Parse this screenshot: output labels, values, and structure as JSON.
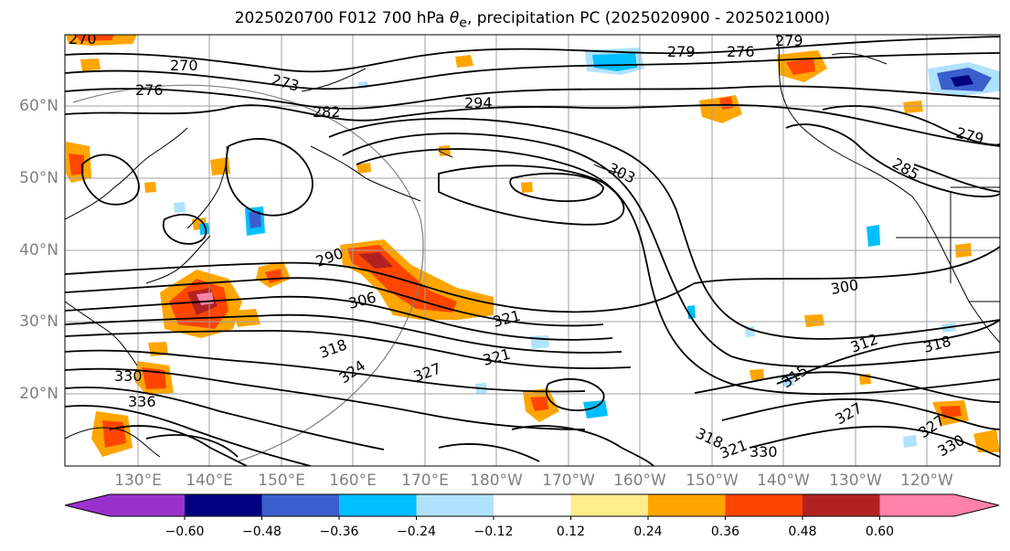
{
  "title_main": "2025020700 F012 700 hPa ",
  "title_symbol": "θ",
  "title_sub": "e",
  "title_rest": ", precipitation PC (2025020900 - 2025021000)",
  "latitude_labels": [
    "60°N",
    "50°N",
    "40°N",
    "30°N",
    "20°N"
  ],
  "longitude_labels": [
    "130°E",
    "140°E",
    "150°E",
    "160°E",
    "170°E",
    "180°W",
    "170°W",
    "160°W",
    "150°W",
    "140°W",
    "130°W",
    "120°W"
  ],
  "contour_labels": [
    "270",
    "276",
    "273",
    "270",
    "279",
    "276",
    "279",
    "294",
    "282",
    "303",
    "285",
    "279",
    "290",
    "306",
    "300",
    "321",
    "312",
    "318",
    "321",
    "327",
    "324",
    "318",
    "315",
    "327",
    "336",
    "330",
    "318",
    "321",
    "330",
    "330",
    "327"
  ],
  "colorbar": {
    "ticks": [
      "−0.60",
      "−0.48",
      "−0.36",
      "−0.24",
      "−0.12",
      "0.12",
      "0.24",
      "0.36",
      "0.48",
      "0.60"
    ],
    "colors": [
      "#9932cc",
      "#000080",
      "#3a5fcd",
      "#00bfff",
      "#b0e2ff",
      "#ffffff",
      "#ffec8b",
      "#ffa500",
      "#ff4500",
      "#b22222",
      "#ff82ab"
    ]
  },
  "colors": {
    "coast": "#000000",
    "grid": "#a0a0a0",
    "contour": "#000000",
    "label_gray": "#808080"
  }
}
